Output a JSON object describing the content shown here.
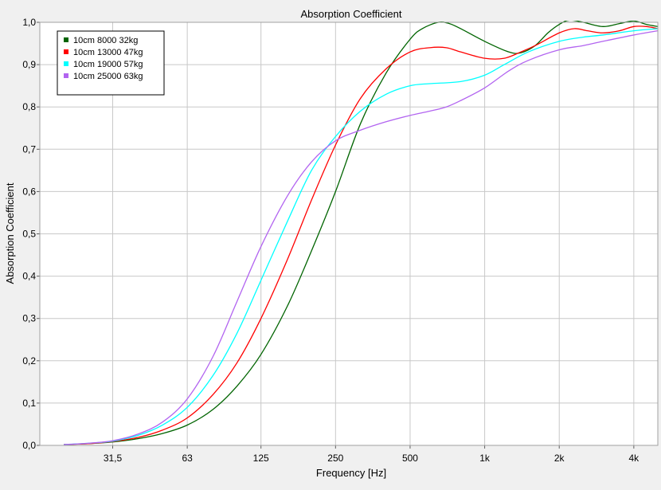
{
  "chart_data": {
    "type": "line",
    "title": "Absorption Coefficient",
    "xlabel": "Frequency [Hz]",
    "ylabel": "Absorption Coefficient",
    "x_scale": "log",
    "xlim": [
      16,
      5000
    ],
    "ylim": [
      0,
      1
    ],
    "x_ticks": [
      {
        "value": 31.5,
        "label": "31,5"
      },
      {
        "value": 63,
        "label": "63"
      },
      {
        "value": 125,
        "label": "125"
      },
      {
        "value": 250,
        "label": "250"
      },
      {
        "value": 500,
        "label": "500"
      },
      {
        "value": 1000,
        "label": "1k"
      },
      {
        "value": 2000,
        "label": "2k"
      },
      {
        "value": 4000,
        "label": "4k"
      }
    ],
    "y_ticks": [
      {
        "value": 0,
        "label": "0,0"
      },
      {
        "value": 0.1,
        "label": "0,1"
      },
      {
        "value": 0.2,
        "label": "0,2"
      },
      {
        "value": 0.3,
        "label": "0,3"
      },
      {
        "value": 0.4,
        "label": "0,4"
      },
      {
        "value": 0.5,
        "label": "0,5"
      },
      {
        "value": 0.6,
        "label": "0,6"
      },
      {
        "value": 0.7,
        "label": "0,7"
      },
      {
        "value": 0.8,
        "label": "0,8"
      },
      {
        "value": 0.9,
        "label": "0,9"
      },
      {
        "value": 1.0,
        "label": "1,0"
      }
    ],
    "grid": true,
    "legend_position": "top-left",
    "series": [
      {
        "name": "10cm 8000 32kg",
        "color": "#006400",
        "points": [
          [
            20,
            0.002
          ],
          [
            25,
            0.004
          ],
          [
            31.5,
            0.008
          ],
          [
            40,
            0.016
          ],
          [
            50,
            0.028
          ],
          [
            63,
            0.048
          ],
          [
            80,
            0.085
          ],
          [
            100,
            0.14
          ],
          [
            125,
            0.215
          ],
          [
            160,
            0.33
          ],
          [
            200,
            0.46
          ],
          [
            250,
            0.6
          ],
          [
            315,
            0.76
          ],
          [
            400,
            0.88
          ],
          [
            500,
            0.96
          ],
          [
            560,
            0.985
          ],
          [
            650,
            1.0
          ],
          [
            720,
            0.997
          ],
          [
            800,
            0.985
          ],
          [
            1000,
            0.955
          ],
          [
            1250,
            0.93
          ],
          [
            1400,
            0.928
          ],
          [
            1600,
            0.945
          ],
          [
            1800,
            0.975
          ],
          [
            2000,
            0.995
          ],
          [
            2200,
            1.005
          ],
          [
            2500,
            1.0
          ],
          [
            3000,
            0.99
          ],
          [
            3500,
            0.997
          ],
          [
            4000,
            1.003
          ],
          [
            4500,
            0.995
          ],
          [
            5000,
            0.99
          ]
        ]
      },
      {
        "name": "10cm 13000 47kg",
        "color": "#ff0000",
        "points": [
          [
            20,
            0.002
          ],
          [
            25,
            0.004
          ],
          [
            31.5,
            0.009
          ],
          [
            40,
            0.019
          ],
          [
            50,
            0.036
          ],
          [
            63,
            0.065
          ],
          [
            80,
            0.12
          ],
          [
            100,
            0.195
          ],
          [
            125,
            0.3
          ],
          [
            160,
            0.44
          ],
          [
            200,
            0.58
          ],
          [
            250,
            0.71
          ],
          [
            315,
            0.82
          ],
          [
            400,
            0.89
          ],
          [
            500,
            0.93
          ],
          [
            600,
            0.94
          ],
          [
            700,
            0.94
          ],
          [
            800,
            0.93
          ],
          [
            1000,
            0.915
          ],
          [
            1200,
            0.915
          ],
          [
            1400,
            0.93
          ],
          [
            1600,
            0.945
          ],
          [
            2000,
            0.975
          ],
          [
            2300,
            0.985
          ],
          [
            2600,
            0.98
          ],
          [
            3000,
            0.975
          ],
          [
            3500,
            0.98
          ],
          [
            4000,
            0.99
          ],
          [
            4500,
            0.99
          ],
          [
            5000,
            0.985
          ]
        ]
      },
      {
        "name": "10cm 19000 57kg",
        "color": "#00ffff",
        "points": [
          [
            20,
            0.002
          ],
          [
            25,
            0.005
          ],
          [
            31.5,
            0.01
          ],
          [
            40,
            0.024
          ],
          [
            50,
            0.048
          ],
          [
            63,
            0.09
          ],
          [
            80,
            0.165
          ],
          [
            100,
            0.265
          ],
          [
            125,
            0.39
          ],
          [
            160,
            0.53
          ],
          [
            200,
            0.65
          ],
          [
            250,
            0.73
          ],
          [
            315,
            0.79
          ],
          [
            400,
            0.83
          ],
          [
            500,
            0.85
          ],
          [
            600,
            0.855
          ],
          [
            800,
            0.86
          ],
          [
            1000,
            0.875
          ],
          [
            1200,
            0.9
          ],
          [
            1500,
            0.93
          ],
          [
            2000,
            0.955
          ],
          [
            2500,
            0.965
          ],
          [
            3000,
            0.97
          ],
          [
            4000,
            0.98
          ],
          [
            5000,
            0.985
          ]
        ]
      },
      {
        "name": "10cm 25000 63kg",
        "color": "#b264f0",
        "points": [
          [
            20,
            0.002
          ],
          [
            25,
            0.005
          ],
          [
            31.5,
            0.011
          ],
          [
            40,
            0.027
          ],
          [
            50,
            0.055
          ],
          [
            63,
            0.11
          ],
          [
            80,
            0.21
          ],
          [
            100,
            0.34
          ],
          [
            125,
            0.47
          ],
          [
            160,
            0.59
          ],
          [
            200,
            0.67
          ],
          [
            250,
            0.72
          ],
          [
            315,
            0.745
          ],
          [
            400,
            0.765
          ],
          [
            500,
            0.78
          ],
          [
            600,
            0.79
          ],
          [
            700,
            0.8
          ],
          [
            800,
            0.815
          ],
          [
            1000,
            0.845
          ],
          [
            1250,
            0.885
          ],
          [
            1500,
            0.91
          ],
          [
            2000,
            0.935
          ],
          [
            2500,
            0.945
          ],
          [
            3000,
            0.955
          ],
          [
            4000,
            0.97
          ],
          [
            5000,
            0.98
          ]
        ]
      }
    ]
  }
}
